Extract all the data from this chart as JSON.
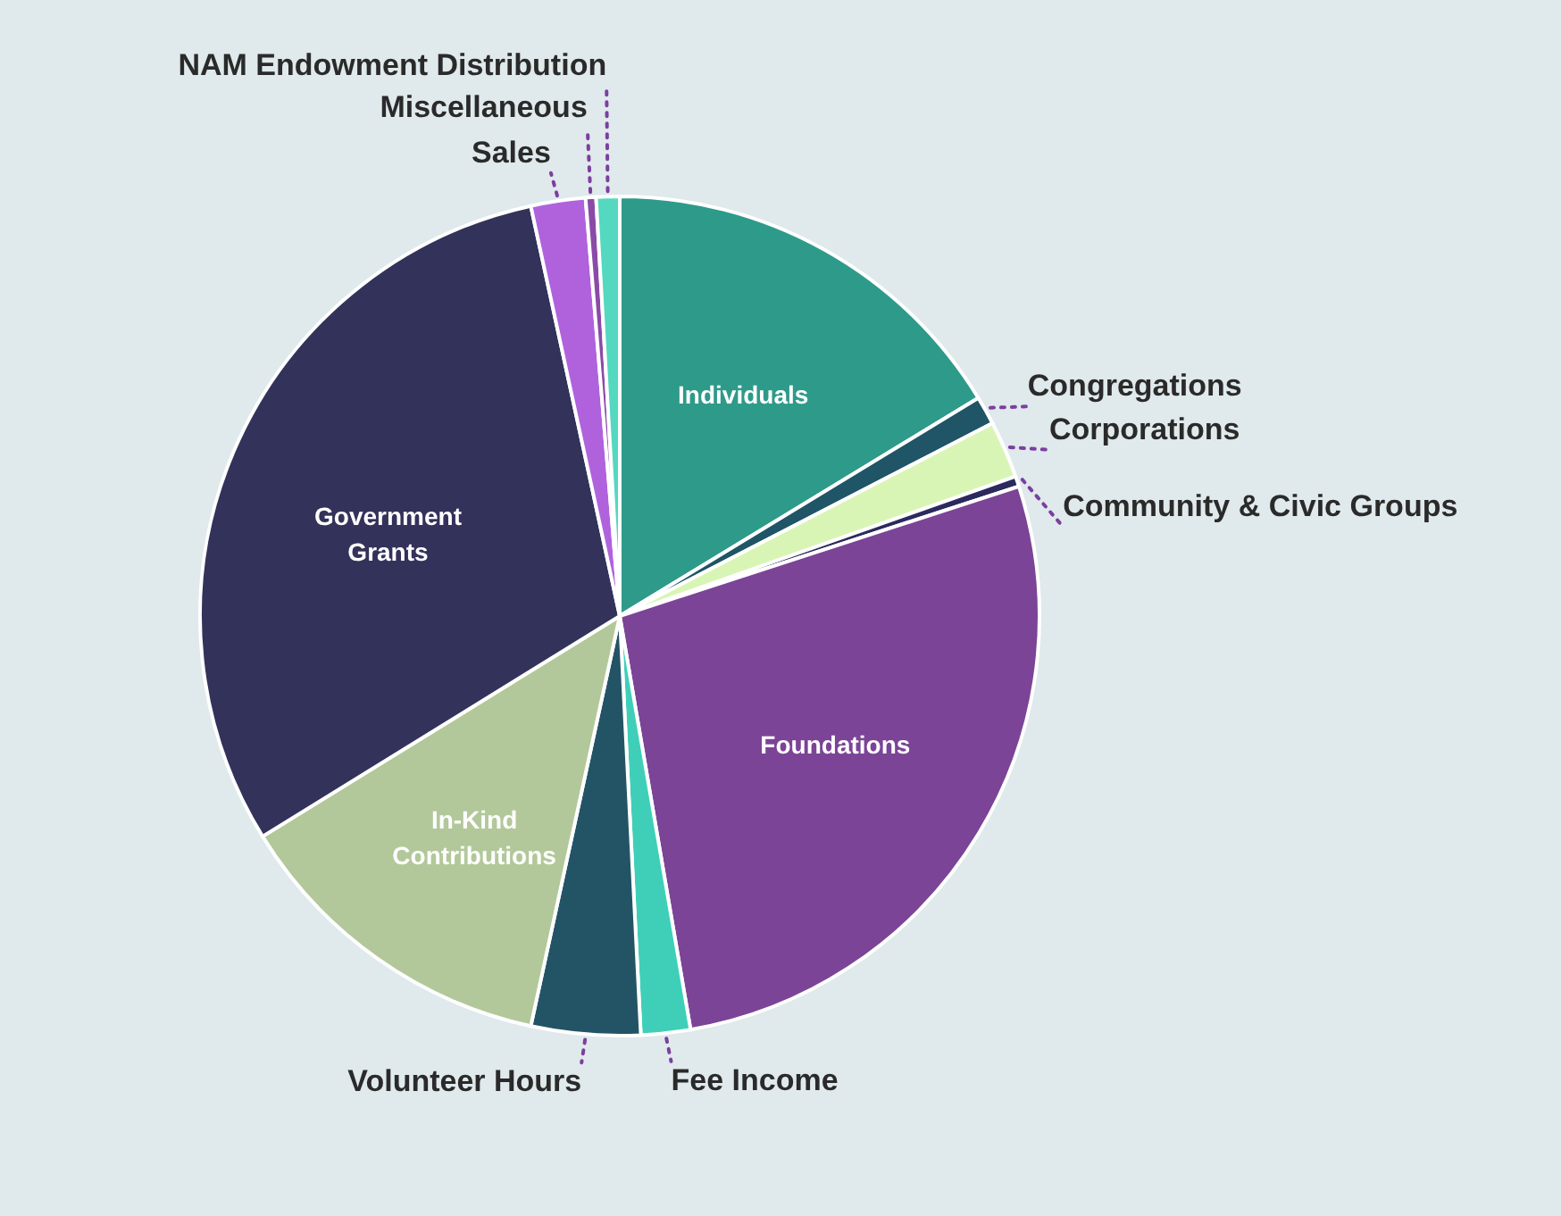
{
  "chart_data": {
    "type": "pie",
    "categories": [
      "Individuals",
      "Congregations",
      "Corporations",
      "Community & Civic Groups",
      "Foundations",
      "Fee Income",
      "Volunteer Hours",
      "In-Kind Contributions",
      "Government Grants",
      "Sales",
      "Miscellaneous",
      "NAM Endowment Distribution"
    ],
    "values": [
      16.3,
      1.1,
      2.2,
      0.4,
      27.3,
      1.9,
      4.2,
      12.8,
      30.4,
      2.1,
      0.4,
      0.9
    ],
    "colors": [
      "#2e9a8a",
      "#1f5566",
      "#d9f5b5",
      "#2b2a5e",
      "#7b4497",
      "#3fcfb8",
      "#235466",
      "#b3c89a",
      "#32325a",
      "#b062dd",
      "#8a4aa8",
      "#55d8c0"
    ]
  }
}
